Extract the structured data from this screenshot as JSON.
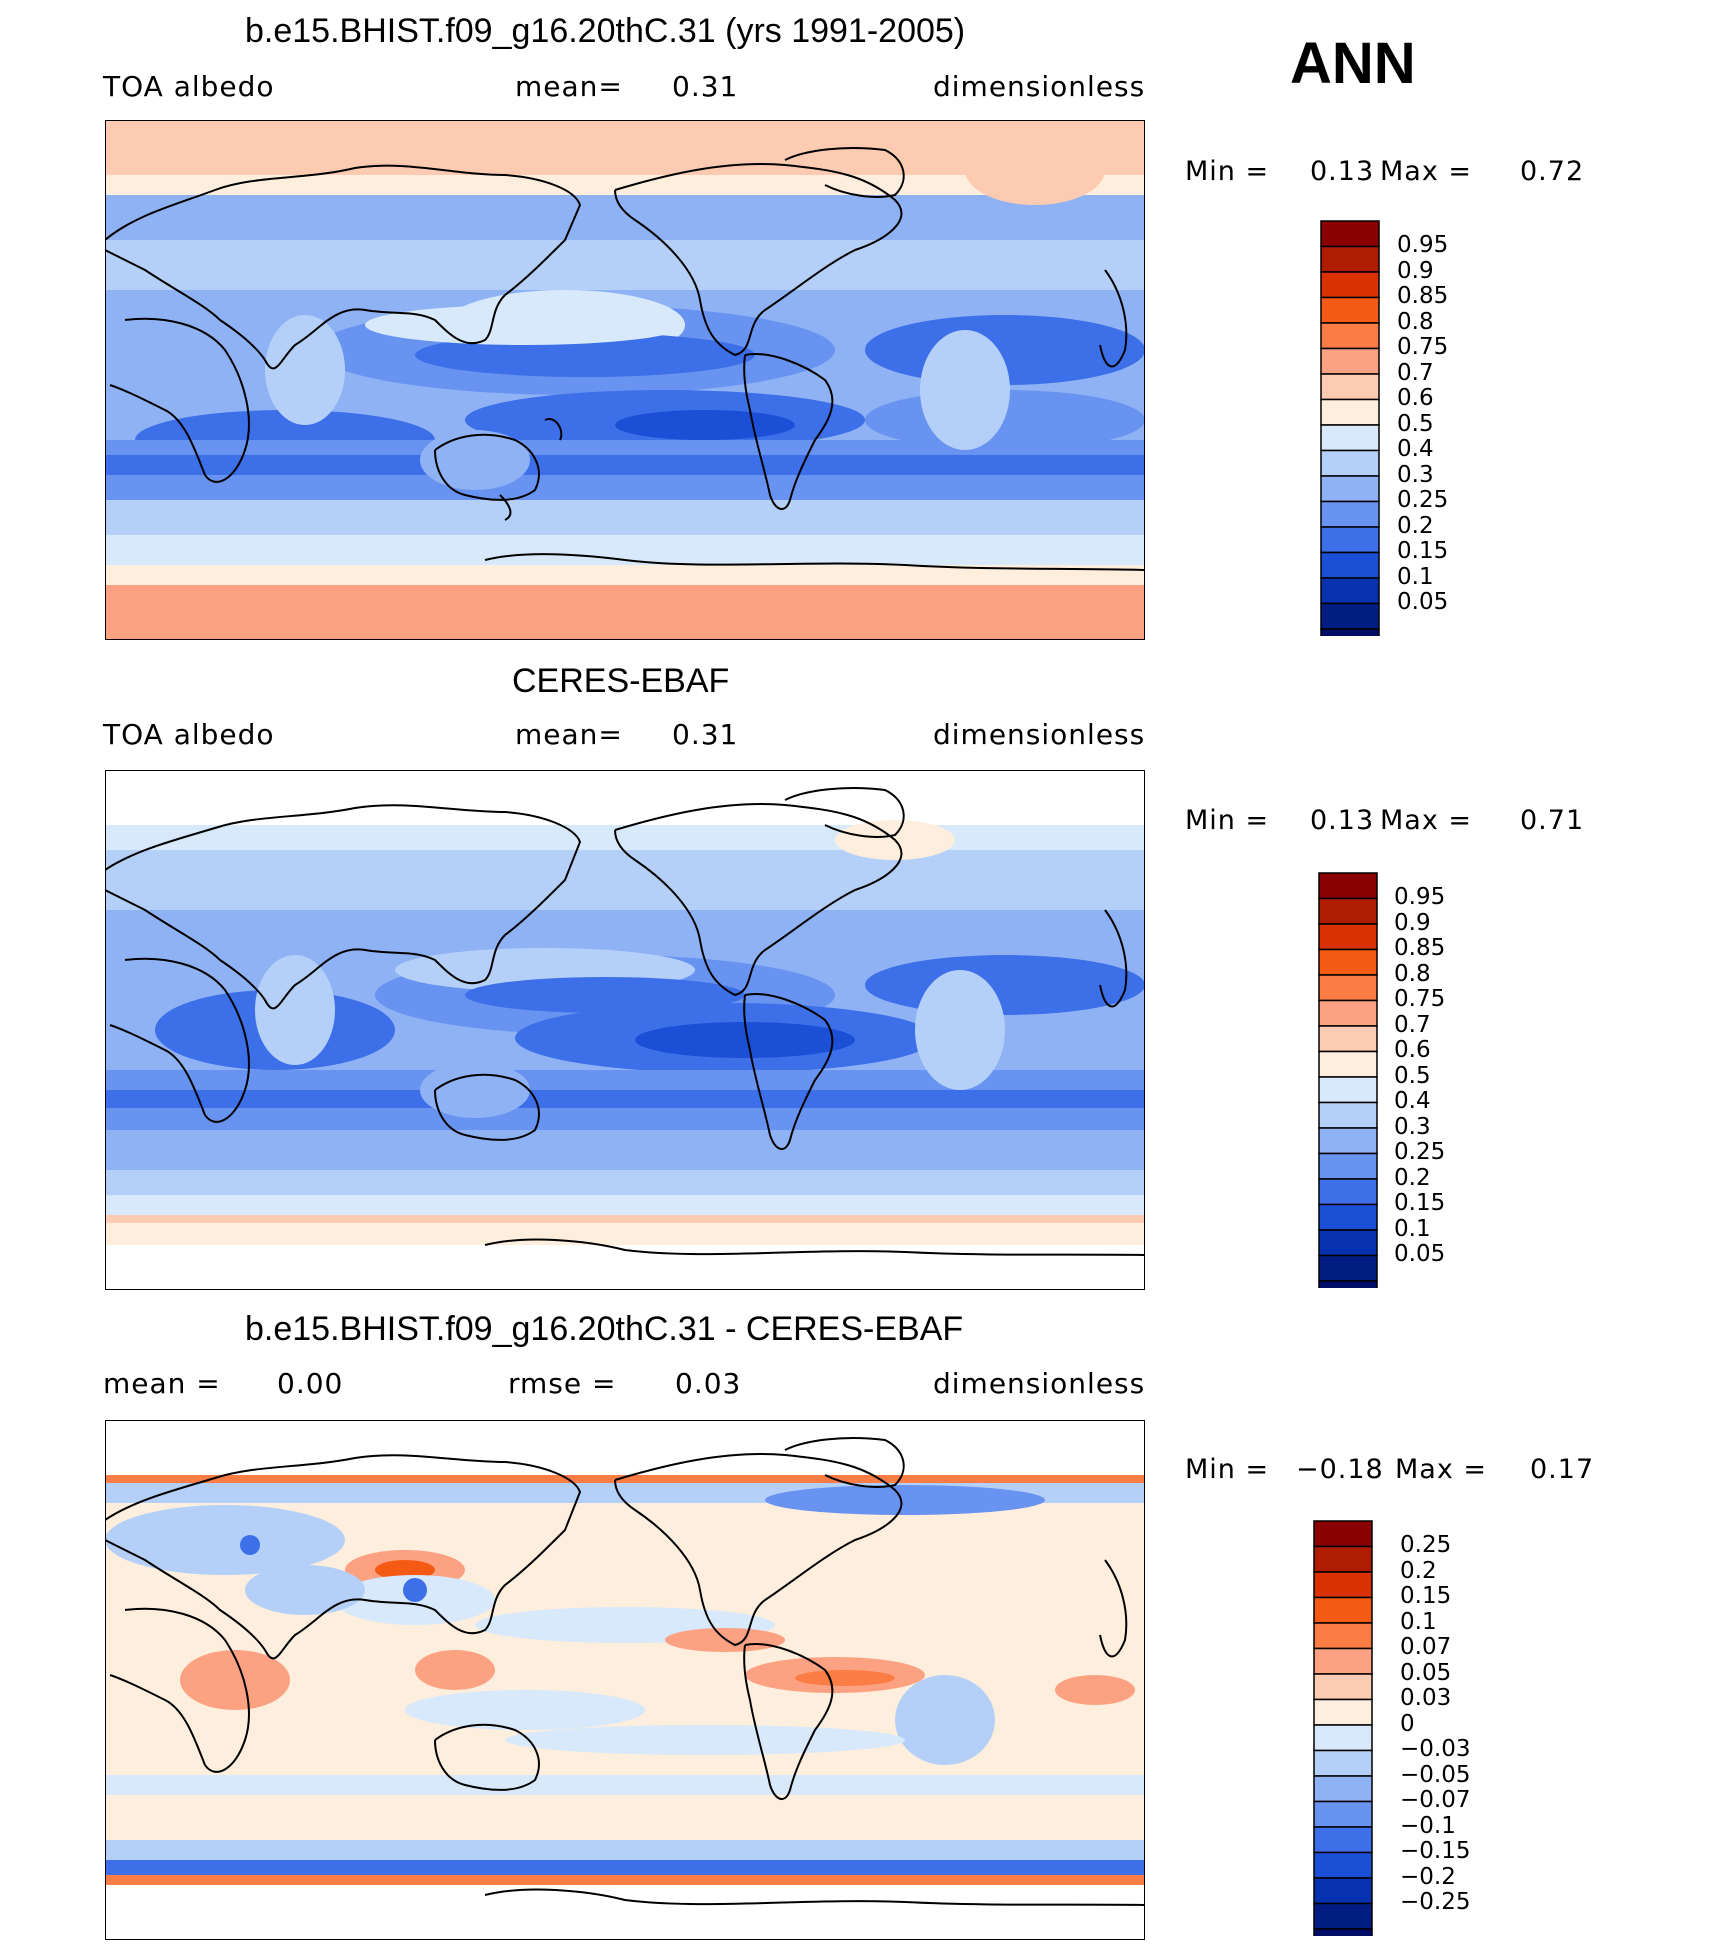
{
  "season": "ANN",
  "panels": [
    {
      "title": "b.e15.BHIST.f09_g16.20thC.31 (yrs 1991-2005)",
      "left_label": "TOA albedo",
      "mid_label": "mean=",
      "mid_value": "0.31",
      "right_label": "dimensionless",
      "min_label": "Min =",
      "min_value": "0.13",
      "max_label": "Max =",
      "max_value": "0.72",
      "colorbar_labels": [
        "0.95",
        "0.9",
        "0.85",
        "0.8",
        "0.75",
        "0.7",
        "0.6",
        "0.5",
        "0.4",
        "0.3",
        "0.25",
        "0.2",
        "0.15",
        "0.1",
        "0.05"
      ]
    },
    {
      "title": "CERES-EBAF",
      "left_label": "TOA albedo",
      "mid_label": "mean=",
      "mid_value": "0.31",
      "right_label": "dimensionless",
      "min_label": "Min =",
      "min_value": "0.13",
      "max_label": "Max =",
      "max_value": "0.71",
      "colorbar_labels": [
        "0.95",
        "0.9",
        "0.85",
        "0.8",
        "0.75",
        "0.7",
        "0.6",
        "0.5",
        "0.4",
        "0.3",
        "0.25",
        "0.2",
        "0.15",
        "0.1",
        "0.05"
      ]
    },
    {
      "title": "b.e15.BHIST.f09_g16.20thC.31 - CERES-EBAF",
      "left_label": "mean =",
      "left_value": "0.00",
      "mid_label": "rmse =",
      "mid_value": "0.03",
      "right_label": "dimensionless",
      "min_label": "Min =",
      "min_value": "−0.18",
      "max_label": "Max =",
      "max_value": "0.17",
      "colorbar_labels": [
        "0.25",
        "0.2",
        "0.15",
        "0.1",
        "0.07",
        "0.05",
        "0.03",
        "0",
        "−0.03",
        "−0.05",
        "−0.07",
        "−0.1",
        "−0.15",
        "−0.2",
        "−0.25"
      ]
    }
  ],
  "colors": {
    "scale": [
      "#8b0000",
      "#b01c00",
      "#d93200",
      "#f55a14",
      "#fb7d45",
      "#fca282",
      "#fdcbb2",
      "#fdeedd",
      "#d7e9fb",
      "#b5d0f8",
      "#8fb2f5",
      "#6893f0",
      "#3d6fe8",
      "#1b4fd6",
      "#0831b0",
      "#011d82",
      "#000c66"
    ]
  }
}
